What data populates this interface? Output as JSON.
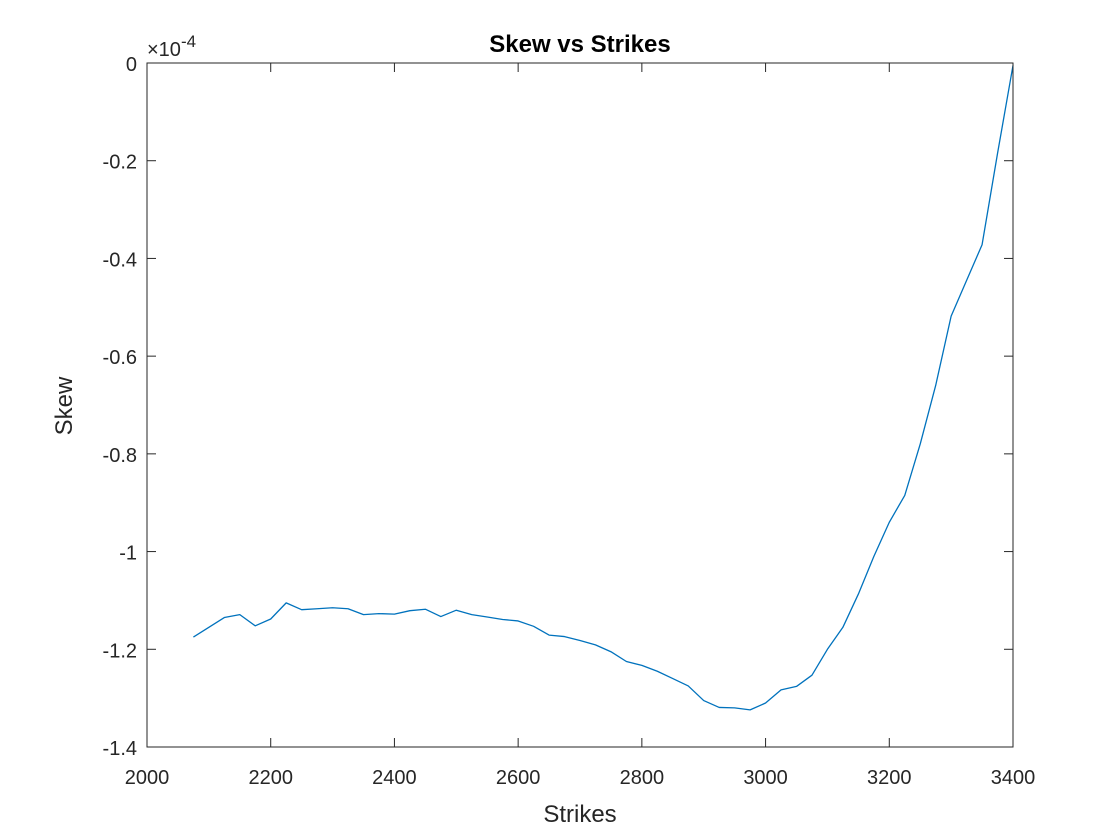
{
  "chart_data": {
    "type": "line",
    "title": "Skew vs Strikes",
    "xlabel": "Strikes",
    "ylabel": "Skew",
    "y_exponent_label": "×10",
    "y_exponent_power": "-4",
    "xlim": [
      2000,
      3400
    ],
    "ylim": [
      -1.4,
      0
    ],
    "xticks": [
      2000,
      2200,
      2400,
      2600,
      2800,
      3000,
      3200,
      3400
    ],
    "xtick_labels": [
      "2000",
      "2200",
      "2400",
      "2600",
      "2800",
      "3000",
      "3200",
      "3400"
    ],
    "yticks": [
      0,
      -0.2,
      -0.4,
      -0.6,
      -0.8,
      -1,
      -1.2,
      -1.4
    ],
    "ytick_labels": [
      "0",
      "-0.2",
      "-0.4",
      "-0.6",
      "-0.8",
      "-1",
      "-1.2",
      "-1.4"
    ],
    "grid": false,
    "line_color": "#0072bd",
    "series": [
      {
        "x": [
          2075,
          2100,
          2125,
          2150,
          2175,
          2200,
          2225,
          2250,
          2275,
          2300,
          2325,
          2350,
          2375,
          2400,
          2425,
          2450,
          2475,
          2500,
          2525,
          2550,
          2575,
          2600,
          2625,
          2650,
          2675,
          2700,
          2725,
          2750,
          2775,
          2800,
          2825,
          2850,
          2875,
          2900,
          2925,
          2950,
          2975,
          3000,
          3025,
          3050,
          3075,
          3100,
          3125,
          3150,
          3175,
          3200,
          3225,
          3250,
          3275,
          3300,
          3325,
          3350,
          3375,
          3400
        ],
        "y": [
          -1.175,
          -1.155,
          -1.135,
          -1.129,
          -1.152,
          -1.138,
          -1.105,
          -1.119,
          -1.117,
          -1.115,
          -1.117,
          -1.129,
          -1.127,
          -1.128,
          -1.121,
          -1.118,
          -1.133,
          -1.12,
          -1.129,
          -1.134,
          -1.139,
          -1.142,
          -1.153,
          -1.171,
          -1.174,
          -1.182,
          -1.191,
          -1.205,
          -1.225,
          -1.233,
          -1.245,
          -1.26,
          -1.275,
          -1.305,
          -1.319,
          -1.32,
          -1.324,
          -1.31,
          -1.283,
          -1.276,
          -1.253,
          -1.2,
          -1.155,
          -1.087,
          -1.01,
          -0.94,
          -0.885,
          -0.78,
          -0.66,
          -0.518,
          -0.445,
          -0.372,
          -0.185,
          -0.005
        ]
      }
    ]
  }
}
